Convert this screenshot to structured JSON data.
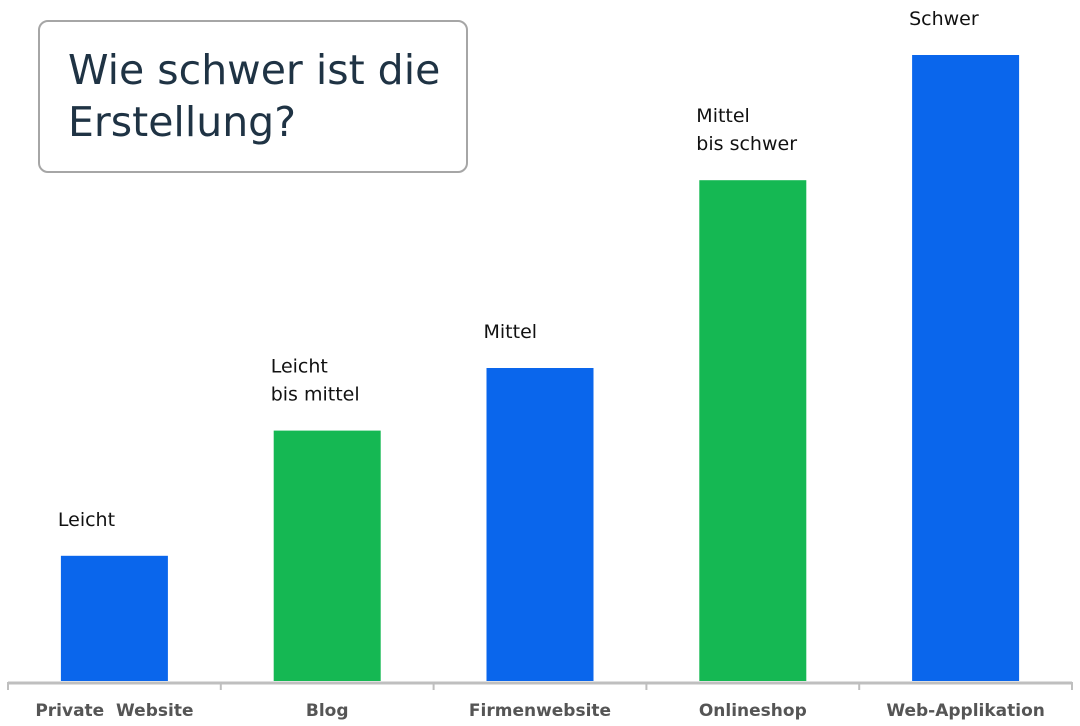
{
  "chart_data": {
    "type": "bar",
    "title": "Wie schwer ist die\nErstellung?",
    "categories": [
      "Private  Website",
      "Blog",
      "Firmenwebsite",
      "Onlineshop",
      "Web-Applikation"
    ],
    "values": [
      1,
      2,
      2.5,
      4,
      5
    ],
    "data_labels": [
      [
        "Leicht"
      ],
      [
        "Leicht",
        "bis mittel"
      ],
      [
        "Mittel"
      ],
      [
        "Mittel",
        "bis schwer"
      ],
      [
        "Schwer"
      ]
    ],
    "colors": [
      "#0a66ec",
      "#15b853",
      "#0a66ec",
      "#15b853",
      "#0a66ec"
    ],
    "ylim": [
      0,
      5
    ],
    "xlabel": "",
    "ylabel": "",
    "grid": false,
    "legend": "none",
    "axis_color": "#bfbfbf"
  }
}
